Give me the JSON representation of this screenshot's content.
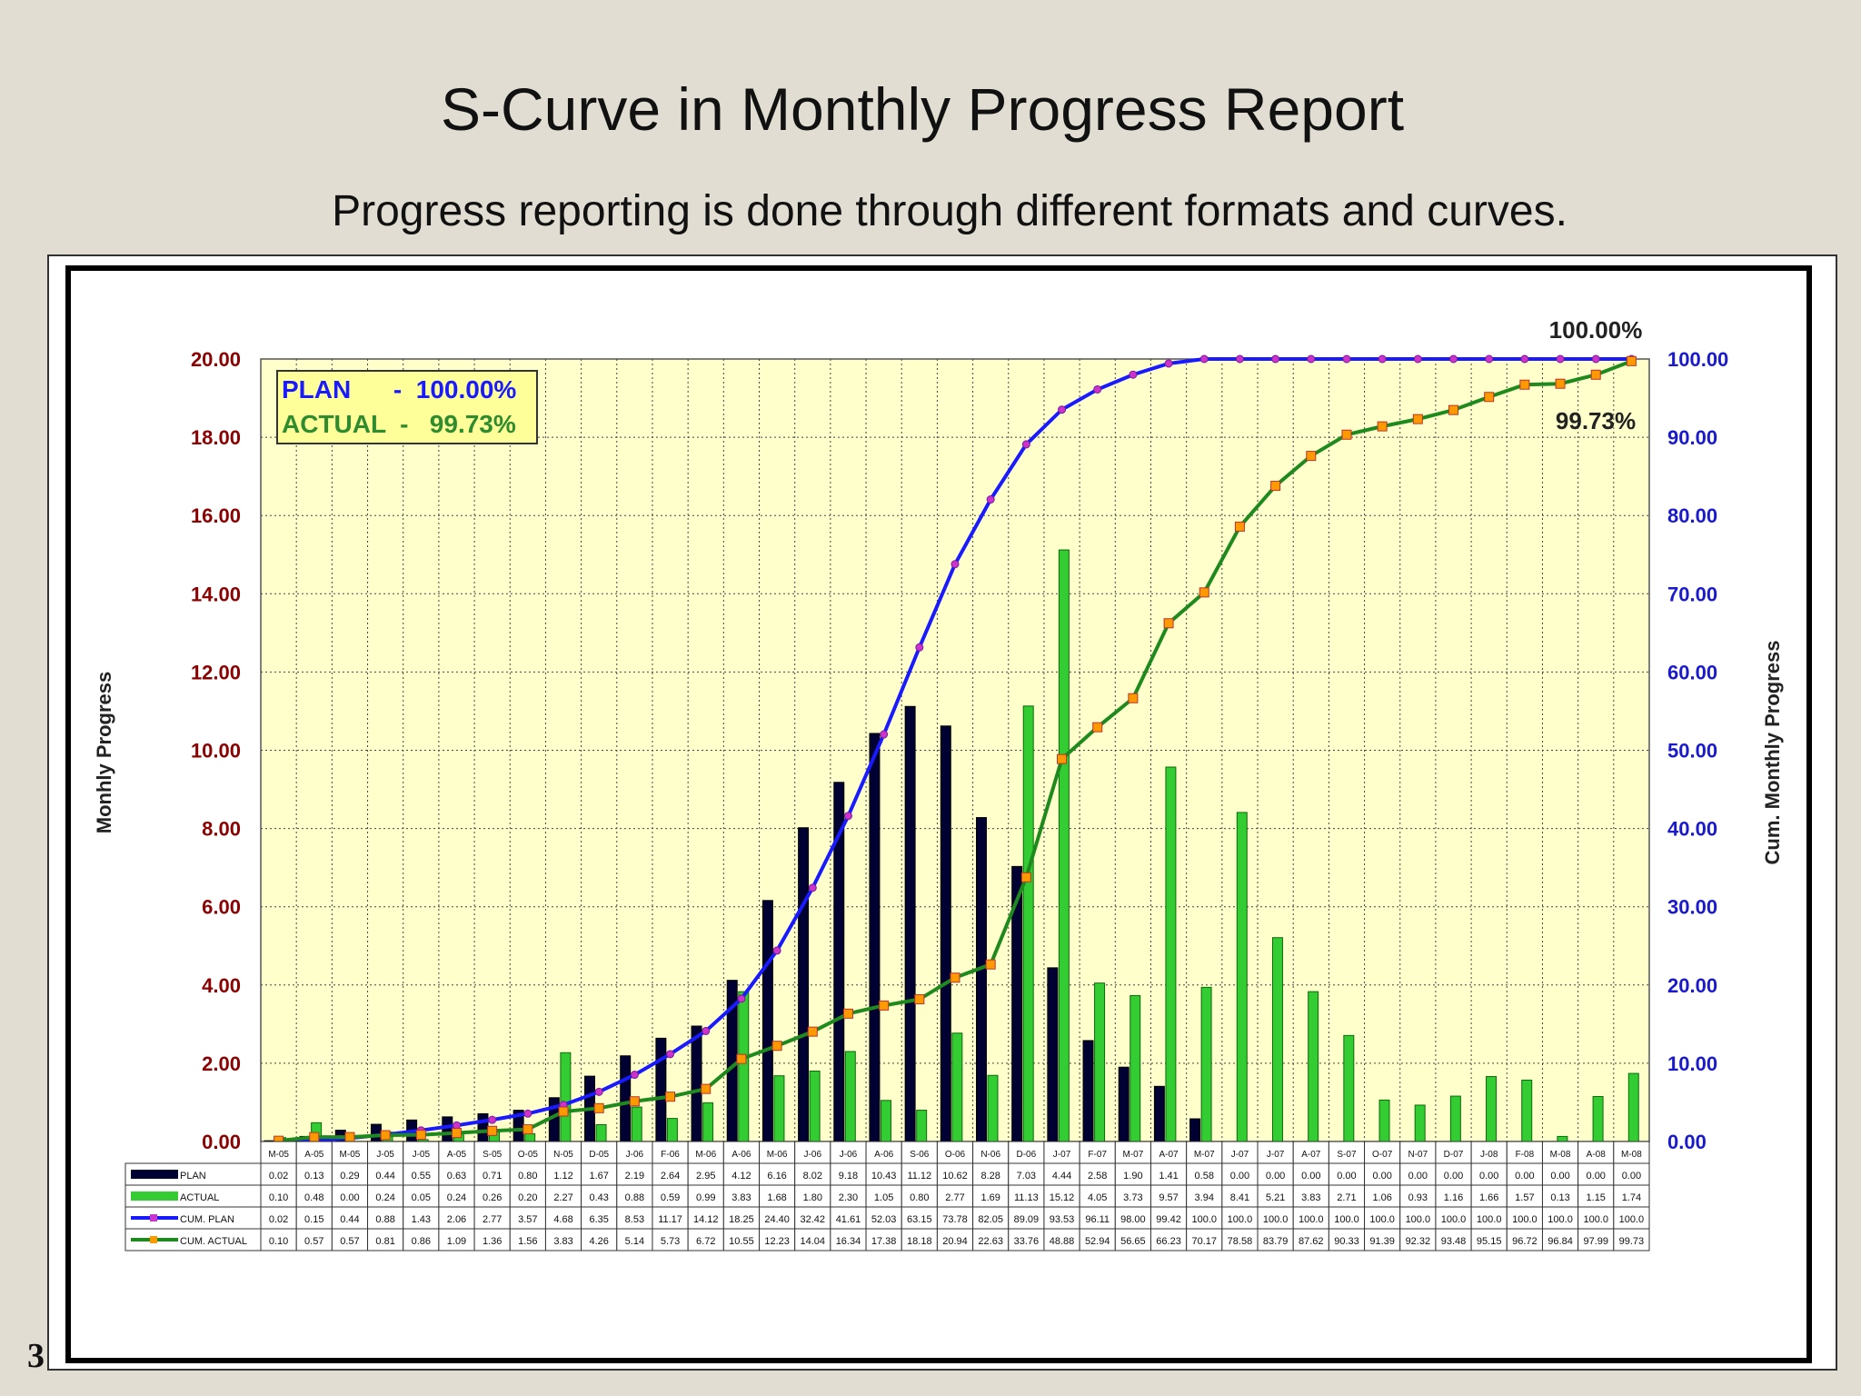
{
  "slide": {
    "title": "S-Curve in Monthly Progress Report",
    "subtitle": "Progress reporting is done through different formats and curves.",
    "page_number": "3"
  },
  "colors": {
    "plan": "#000033",
    "plan_line": "#1a1aff",
    "actual": "#33cc33",
    "actual_line": "#1e8a1e",
    "marker_plan": "#cc33cc",
    "marker_actual": "#ff9900",
    "plot_bg": "#ffffcc",
    "left_axis": "#8b0000",
    "right_axis": "#1a1acc"
  },
  "chart_data": {
    "type": "bar",
    "title": "",
    "ylabel": "Monhly Progress",
    "y2label": "Cum. Monthly Progress",
    "ylim": [
      0,
      20
    ],
    "y2lim": [
      0,
      100
    ],
    "yticks": [
      "0.00",
      "2.00",
      "4.00",
      "6.00",
      "8.00",
      "10.00",
      "12.00",
      "14.00",
      "16.00",
      "18.00",
      "20.00"
    ],
    "y2ticks": [
      "0.00",
      "10.00",
      "20.00",
      "30.00",
      "40.00",
      "50.00",
      "60.00",
      "70.00",
      "80.00",
      "90.00",
      "100.00"
    ],
    "grid": true,
    "categories": [
      "M-05",
      "A-05",
      "M-05",
      "J-05",
      "J-05",
      "A-05",
      "S-05",
      "O-05",
      "N-05",
      "D-05",
      "J-06",
      "F-06",
      "M-06",
      "A-06",
      "M-06",
      "J-06",
      "J-06",
      "A-06",
      "S-06",
      "O-06",
      "N-06",
      "D-06",
      "J-07",
      "F-07",
      "M-07",
      "A-07",
      "M-07",
      "J-07",
      "J-07",
      "A-07",
      "S-07",
      "O-07",
      "N-07",
      "D-07",
      "J-08",
      "F-08",
      "M-08",
      "A-08",
      "M-08"
    ],
    "series": [
      {
        "name": "PLAN",
        "kind": "bar",
        "axis": "left",
        "values": [
          0.02,
          0.13,
          0.29,
          0.44,
          0.55,
          0.63,
          0.71,
          0.8,
          1.12,
          1.67,
          2.19,
          2.64,
          2.95,
          4.12,
          6.16,
          8.02,
          9.18,
          10.43,
          11.12,
          10.62,
          8.28,
          7.03,
          4.44,
          2.58,
          1.9,
          1.41,
          0.58,
          0.0,
          0.0,
          0.0,
          0.0,
          0.0,
          0.0,
          0.0,
          0.0,
          0.0,
          0.0,
          0.0,
          0.0
        ]
      },
      {
        "name": "ACTUAL",
        "kind": "bar",
        "axis": "left",
        "values": [
          0.1,
          0.48,
          0.0,
          0.24,
          0.05,
          0.24,
          0.26,
          0.2,
          2.27,
          0.43,
          0.88,
          0.59,
          0.99,
          3.83,
          1.68,
          1.8,
          2.3,
          1.05,
          0.8,
          2.77,
          1.69,
          11.13,
          15.12,
          4.05,
          3.73,
          9.57,
          3.94,
          8.41,
          5.21,
          3.83,
          2.71,
          1.06,
          0.93,
          1.16,
          1.66,
          1.57,
          0.13,
          1.15,
          1.74
        ]
      },
      {
        "name": "CUM. PLAN",
        "kind": "line",
        "axis": "right",
        "values": [
          0.02,
          0.15,
          0.44,
          0.88,
          1.43,
          2.06,
          2.77,
          3.57,
          4.68,
          6.35,
          8.53,
          11.17,
          14.12,
          18.25,
          24.4,
          32.42,
          41.61,
          52.03,
          63.15,
          73.78,
          82.05,
          89.09,
          93.53,
          96.11,
          98.0,
          99.42,
          100.0,
          100.0,
          100.0,
          100.0,
          100.0,
          100.0,
          100.0,
          100.0,
          100.0,
          100.0,
          100.0,
          100.0,
          100.0
        ]
      },
      {
        "name": "CUM. ACTUAL",
        "kind": "line",
        "axis": "right",
        "values": [
          0.1,
          0.57,
          0.57,
          0.81,
          0.86,
          1.09,
          1.36,
          1.56,
          3.83,
          4.26,
          5.14,
          5.73,
          6.72,
          10.55,
          12.23,
          14.04,
          16.34,
          17.38,
          18.18,
          20.94,
          22.63,
          33.76,
          48.88,
          52.94,
          56.65,
          66.23,
          70.17,
          78.58,
          83.79,
          87.62,
          90.33,
          91.39,
          92.32,
          93.48,
          95.15,
          96.72,
          96.84,
          97.99,
          99.73
        ]
      }
    ],
    "table_rows": [
      {
        "label": "PLAN",
        "cells": [
          "0.02",
          "0.13",
          "0.29",
          "0.44",
          "0.55",
          "0.63",
          "0.71",
          "0.80",
          "1.12",
          "1.67",
          "2.19",
          "2.64",
          "2.95",
          "4.12",
          "6.16",
          "8.02",
          "9.18",
          "10.43",
          "11.12",
          "10.62",
          "8.28",
          "7.03",
          "4.44",
          "2.58",
          "1.90",
          "1.41",
          "0.58",
          "0.00",
          "0.00",
          "0.00",
          "0.00",
          "0.00",
          "0.00",
          "0.00",
          "0.00",
          "0.00",
          "0.00",
          "0.00",
          "0.00"
        ]
      },
      {
        "label": "ACTUAL",
        "cells": [
          "0.10",
          "0.48",
          "0.00",
          "0.24",
          "0.05",
          "0.24",
          "0.26",
          "0.20",
          "2.27",
          "0.43",
          "0.88",
          "0.59",
          "0.99",
          "3.83",
          "1.68",
          "1.80",
          "2.30",
          "1.05",
          "0.80",
          "2.77",
          "1.69",
          "11.13",
          "15.12",
          "4.05",
          "3.73",
          "9.57",
          "3.94",
          "8.41",
          "5.21",
          "3.83",
          "2.71",
          "1.06",
          "0.93",
          "1.16",
          "1.66",
          "1.57",
          "0.13",
          "1.15",
          "1.74"
        ]
      },
      {
        "label": "CUM. PLAN",
        "cells": [
          "0.02",
          "0.15",
          "0.44",
          "0.88",
          "1.43",
          "2.06",
          "2.77",
          "3.57",
          "4.68",
          "6.35",
          "8.53",
          "11.17",
          "14.12",
          "18.25",
          "24.40",
          "32.42",
          "41.61",
          "52.03",
          "63.15",
          "73.78",
          "82.05",
          "89.09",
          "93.53",
          "96.11",
          "98.00",
          "99.42",
          "100.0",
          "100.0",
          "100.0",
          "100.0",
          "100.0",
          "100.0",
          "100.0",
          "100.0",
          "100.0",
          "100.0",
          "100.0",
          "100.0",
          "100.0"
        ]
      },
      {
        "label": "CUM. ACTUAL",
        "cells": [
          "0.10",
          "0.57",
          "0.57",
          "0.81",
          "0.86",
          "1.09",
          "1.36",
          "1.56",
          "3.83",
          "4.26",
          "5.14",
          "5.73",
          "6.72",
          "10.55",
          "12.23",
          "14.04",
          "16.34",
          "17.38",
          "18.18",
          "20.94",
          "22.63",
          "33.76",
          "48.88",
          "52.94",
          "56.65",
          "66.23",
          "70.17",
          "78.58",
          "83.79",
          "87.62",
          "90.33",
          "91.39",
          "92.32",
          "93.48",
          "95.15",
          "96.72",
          "96.84",
          "97.99",
          "99.73"
        ]
      }
    ],
    "legend_box": {
      "plan_text": "PLAN      -  100.00%",
      "actual_text": "ACTUAL  -   99.73%",
      "placement": "top-left"
    },
    "annotations": {
      "plan_end": "100.00%",
      "actual_end": "99.73%"
    }
  }
}
